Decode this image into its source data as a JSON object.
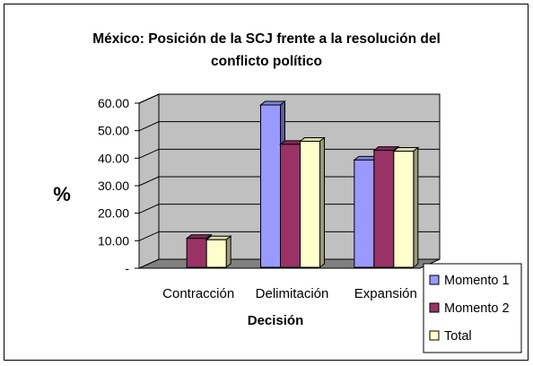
{
  "chart_data": {
    "type": "bar",
    "title_lines": [
      "México: Posición de la SCJ frente a la resolución del",
      "conflicto político"
    ],
    "xlabel": "Decisión",
    "ylabel": "%",
    "categories": [
      "Contracción",
      "Delimitación",
      "Expansión"
    ],
    "series": [
      {
        "name": "Momento 1",
        "values": [
          0,
          60.0,
          40.0
        ],
        "color": "#9999ff"
      },
      {
        "name": "Momento 2",
        "values": [
          11.5,
          45.7,
          43.5
        ],
        "color": "#993366"
      },
      {
        "name": "Total",
        "values": [
          11.0,
          46.8,
          43.2
        ],
        "color": "#ffffcc"
      }
    ],
    "ylim": [
      0,
      60
    ],
    "yticks": [
      "-",
      "10.00",
      "20.00",
      "30.00",
      "40.00",
      "50.00",
      "60.00"
    ],
    "grid": true,
    "three_d": true,
    "legend_position": "right",
    "colors": {
      "wall": "#c0c0c0",
      "floor": "#808080",
      "grid": "#000000"
    }
  }
}
